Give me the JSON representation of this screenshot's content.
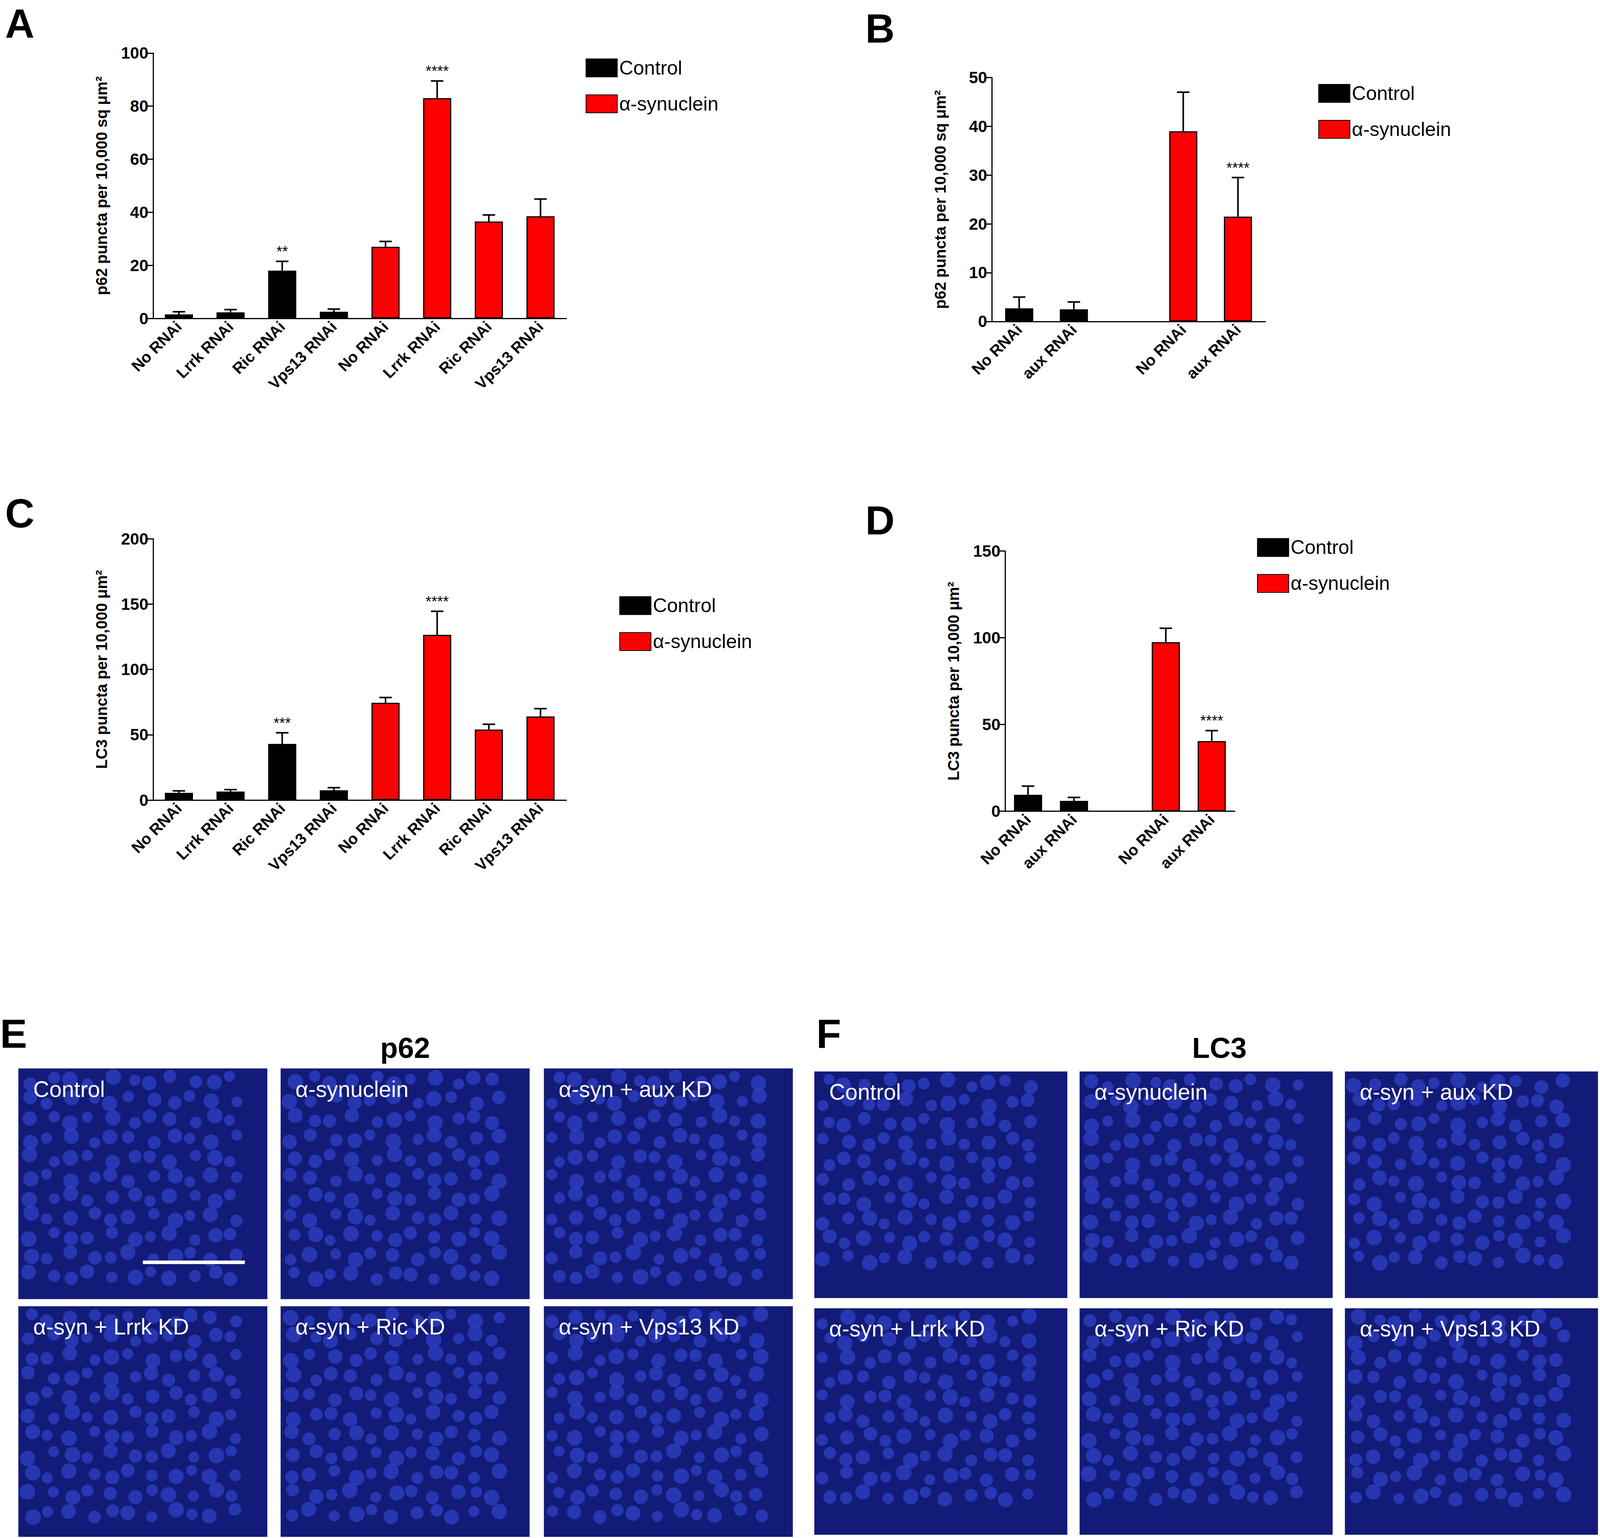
{
  "chart_data": [
    {
      "panel": "A",
      "type": "bar",
      "y_label": "p62 puncta per 10,000 sq μm²",
      "categories": [
        "No RNAi",
        "Lrrk RNAi",
        "Ric RNAi",
        "Vps13 RNAi",
        "No RNAi",
        "Lrrk RNAi",
        "Ric RNAi",
        "Vps13 RNAi"
      ],
      "series": [
        {
          "name": "Control",
          "color": "#000000",
          "values": [
            1.5,
            2.3,
            18,
            2.5,
            null,
            null,
            null,
            null
          ],
          "errors": [
            1,
            1,
            3.5,
            1,
            null,
            null,
            null,
            null
          ],
          "significance": [
            null,
            null,
            "**",
            null,
            null,
            null,
            null,
            null
          ]
        },
        {
          "name": "α-synuclein",
          "color": "#ff0000",
          "values": [
            null,
            null,
            null,
            null,
            27,
            83,
            36.5,
            38.5
          ],
          "errors": [
            null,
            null,
            null,
            null,
            2,
            6.5,
            2.5,
            6.5
          ],
          "significance": [
            null,
            null,
            null,
            null,
            null,
            "****",
            null,
            null
          ]
        }
      ],
      "ylim": [
        0,
        100
      ],
      "yticks": [
        0,
        20,
        40,
        60,
        80,
        100
      ],
      "grid": false,
      "legend": "right"
    },
    {
      "panel": "B",
      "type": "bar",
      "y_label": "p62 puncta per 10,000 sq μm²",
      "categories": [
        "No RNAi",
        "aux RNAi",
        null,
        "No RNAi",
        "aux RNAi"
      ],
      "series": [
        {
          "name": "Control",
          "color": "#000000",
          "values": [
            2.7,
            2.5,
            null,
            null,
            null
          ],
          "errors": [
            2.3,
            1.5,
            null,
            null,
            null
          ],
          "significance": [
            null,
            null,
            null,
            null,
            null
          ]
        },
        {
          "name": "α-synuclein",
          "color": "#ff0000",
          "values": [
            null,
            null,
            null,
            39,
            21.5
          ],
          "errors": [
            null,
            null,
            null,
            8,
            8
          ],
          "significance": [
            null,
            null,
            null,
            null,
            "****"
          ]
        }
      ],
      "ylim": [
        0,
        50
      ],
      "yticks": [
        0,
        10,
        20,
        30,
        40,
        50
      ],
      "grid": false,
      "legend": "right"
    },
    {
      "panel": "C",
      "type": "bar",
      "y_label": "LC3 puncta per 10,000 μm²",
      "categories": [
        "No RNAi",
        "Lrrk RNAi",
        "Ric RNAi",
        "Vps13 RNAi",
        "No RNAi",
        "Lrrk RNAi",
        "Ric RNAi",
        "Vps13 RNAi"
      ],
      "series": [
        {
          "name": "Control",
          "color": "#000000",
          "values": [
            5.5,
            6.5,
            43,
            7.5,
            null,
            null,
            null,
            null
          ],
          "errors": [
            1.5,
            1.5,
            8.5,
            2,
            null,
            null,
            null,
            null
          ],
          "significance": [
            null,
            null,
            "***",
            null,
            null,
            null,
            null,
            null
          ]
        },
        {
          "name": "α-synuclein",
          "color": "#ff0000",
          "values": [
            null,
            null,
            null,
            null,
            74.5,
            126.5,
            54,
            64
          ],
          "errors": [
            null,
            null,
            null,
            null,
            4,
            18,
            4,
            6
          ],
          "significance": [
            null,
            null,
            null,
            null,
            null,
            "****",
            null,
            null
          ]
        }
      ],
      "ylim": [
        0,
        200
      ],
      "yticks": [
        0,
        50,
        100,
        150,
        200
      ],
      "grid": false,
      "legend": "right"
    },
    {
      "panel": "D",
      "type": "bar",
      "y_label": "LC3 puncta per 10,000 μm²",
      "categories": [
        "No RNAi",
        "aux RNAi",
        null,
        "No RNAi",
        "aux RNAi"
      ],
      "series": [
        {
          "name": "Control",
          "color": "#000000",
          "values": [
            9.5,
            6,
            null,
            null,
            null
          ],
          "errors": [
            5,
            2,
            null,
            null,
            null
          ],
          "significance": [
            null,
            null,
            null,
            null,
            null
          ]
        },
        {
          "name": "α-synuclein",
          "color": "#ff0000",
          "values": [
            null,
            null,
            null,
            97.5,
            40.5
          ],
          "errors": [
            null,
            null,
            null,
            8,
            6
          ],
          "significance": [
            null,
            null,
            null,
            null,
            "****"
          ]
        }
      ],
      "ylim": [
        0,
        150
      ],
      "yticks": [
        0,
        50,
        100,
        150
      ],
      "grid": false,
      "legend": "right"
    }
  ],
  "images": [
    {
      "panel": "E",
      "title": "p62",
      "tiles": [
        "Control",
        "α-synuclein",
        "α-syn + aux KD",
        "α-syn + Lrrk KD",
        "α-syn + Ric KD",
        "α-syn + Vps13 KD"
      ]
    },
    {
      "panel": "F",
      "title": "LC3",
      "tiles": [
        "Control",
        "α-synuclein",
        "α-syn + aux KD",
        "α-syn + Lrrk KD",
        "α-syn + Ric KD",
        "α-syn + Vps13 KD"
      ]
    }
  ]
}
